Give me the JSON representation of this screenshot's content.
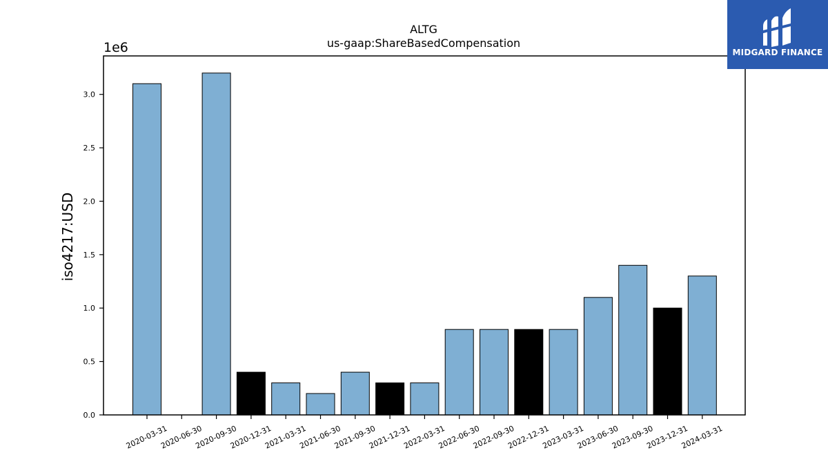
{
  "brand": {
    "name": "MIDGARD FINANCE",
    "logo_icon": "midgard-m-icon",
    "color": "#2b5bb0"
  },
  "chart_data": {
    "type": "bar",
    "title": "ALTG",
    "subtitle": "us-gaap:ShareBasedCompensation",
    "ylabel": "iso4217:USD",
    "xlabel": "",
    "scale_label": "1e6",
    "ylim": [
      0,
      3.36
    ],
    "yticks": [
      0.0,
      0.5,
      1.0,
      1.5,
      2.0,
      2.5,
      3.0
    ],
    "ytick_labels": [
      "0.0",
      "0.5",
      "1.0",
      "1.5",
      "2.0",
      "2.5",
      "3.0"
    ],
    "categories": [
      "2020-03-31",
      "2020-06-30",
      "2020-09-30",
      "2020-12-31",
      "2021-03-31",
      "2021-06-30",
      "2021-09-30",
      "2021-12-31",
      "2022-03-31",
      "2022-06-30",
      "2022-09-30",
      "2022-12-31",
      "2023-03-31",
      "2023-06-30",
      "2023-09-30",
      "2023-12-31",
      "2024-03-31"
    ],
    "values": [
      3.1,
      0,
      3.2,
      0.4,
      0.3,
      0.2,
      0.4,
      0.3,
      0.3,
      0.8,
      0.8,
      0.8,
      0.8,
      1.1,
      1.4,
      1.0,
      1.3
    ],
    "bar_colors": [
      "#7fafd3",
      "#7fafd3",
      "#7fafd3",
      "#000000",
      "#7fafd3",
      "#7fafd3",
      "#7fafd3",
      "#000000",
      "#7fafd3",
      "#7fafd3",
      "#7fafd3",
      "#000000",
      "#7fafd3",
      "#7fafd3",
      "#7fafd3",
      "#000000",
      "#7fafd3"
    ],
    "grid": false
  }
}
